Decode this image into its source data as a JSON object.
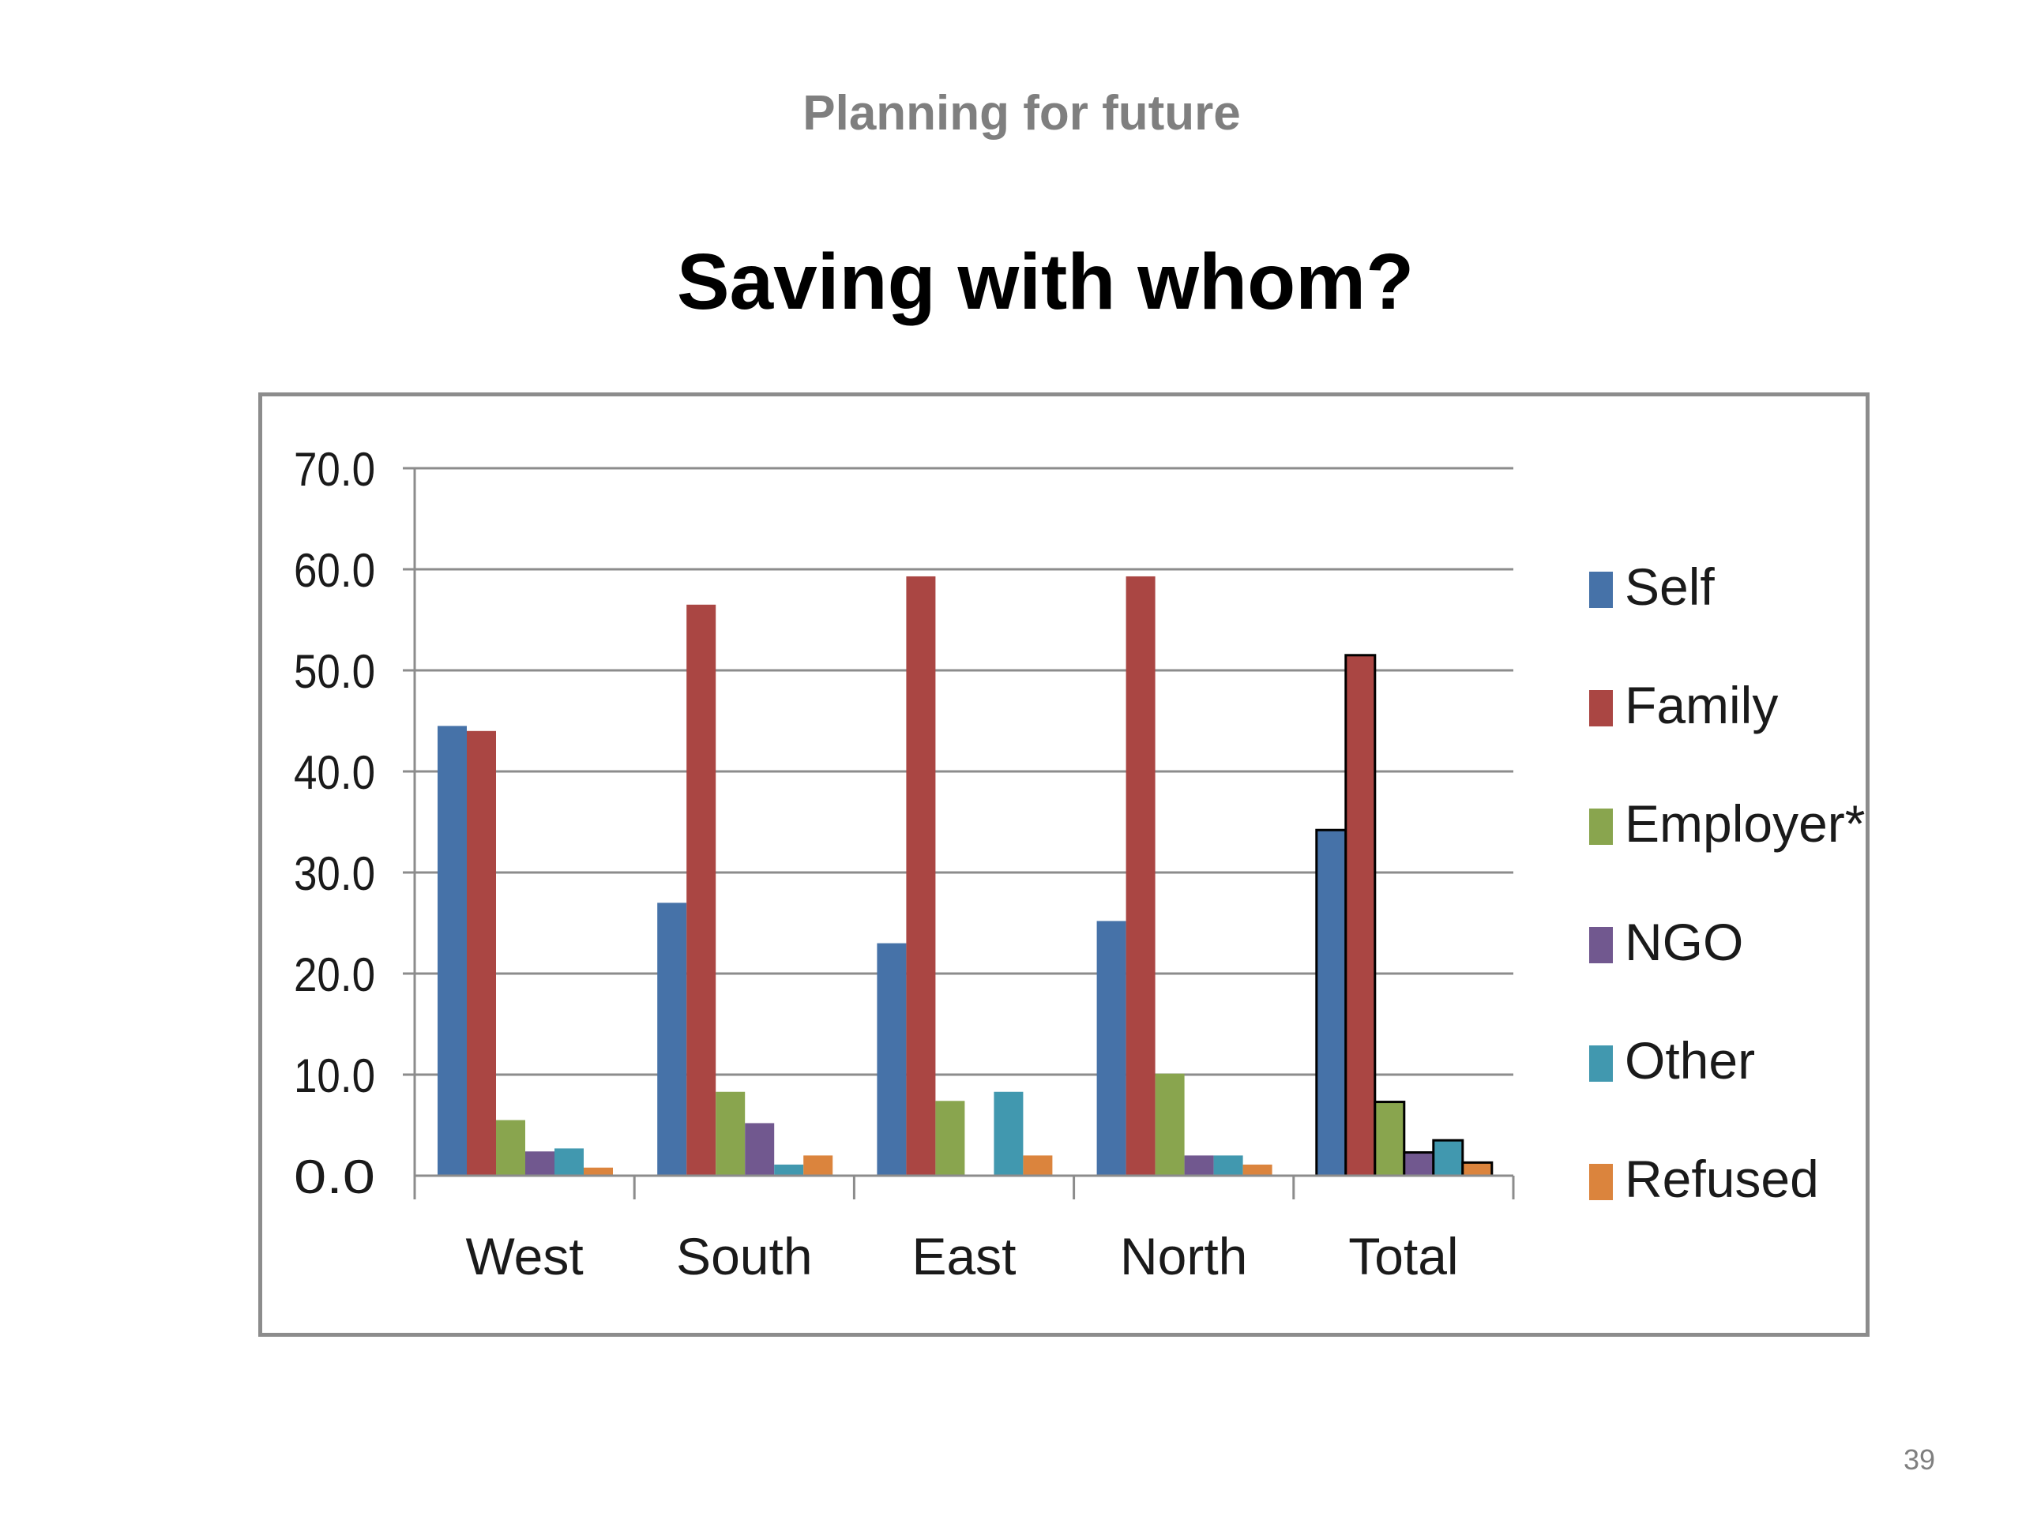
{
  "header": {
    "kicker": "Planning for future",
    "title": "Saving with whom?"
  },
  "footer": {
    "page_number": "39"
  },
  "chart_data": {
    "type": "bar",
    "title": "",
    "xlabel": "",
    "ylabel": "",
    "categories": [
      "West",
      "South",
      "East",
      "North",
      "Total"
    ],
    "ylim": [
      0,
      70
    ],
    "yticks": [
      "0.0",
      "10.0",
      "20.0",
      "30.0",
      "40.0",
      "50.0",
      "60.0",
      "70.0"
    ],
    "grid": true,
    "legend_position": "right",
    "series": [
      {
        "name": "Self",
        "color": "#4672a8",
        "values": [
          44.5,
          27.0,
          23.0,
          25.2,
          34.2
        ]
      },
      {
        "name": "Family",
        "color": "#aa4643",
        "values": [
          44.0,
          56.5,
          59.3,
          59.3,
          51.5
        ]
      },
      {
        "name": "Employer*",
        "color": "#89a54e",
        "values": [
          5.5,
          8.3,
          7.4,
          10.1,
          7.3
        ]
      },
      {
        "name": "NGO",
        "color": "#71588f",
        "values": [
          2.4,
          5.2,
          0.0,
          2.0,
          2.3
        ]
      },
      {
        "name": "Other",
        "color": "#4198af",
        "values": [
          2.7,
          1.1,
          8.3,
          2.0,
          3.5
        ]
      },
      {
        "name": "Refused",
        "color": "#db843d",
        "values": [
          0.8,
          2.0,
          2.0,
          1.1,
          1.3
        ]
      }
    ]
  }
}
